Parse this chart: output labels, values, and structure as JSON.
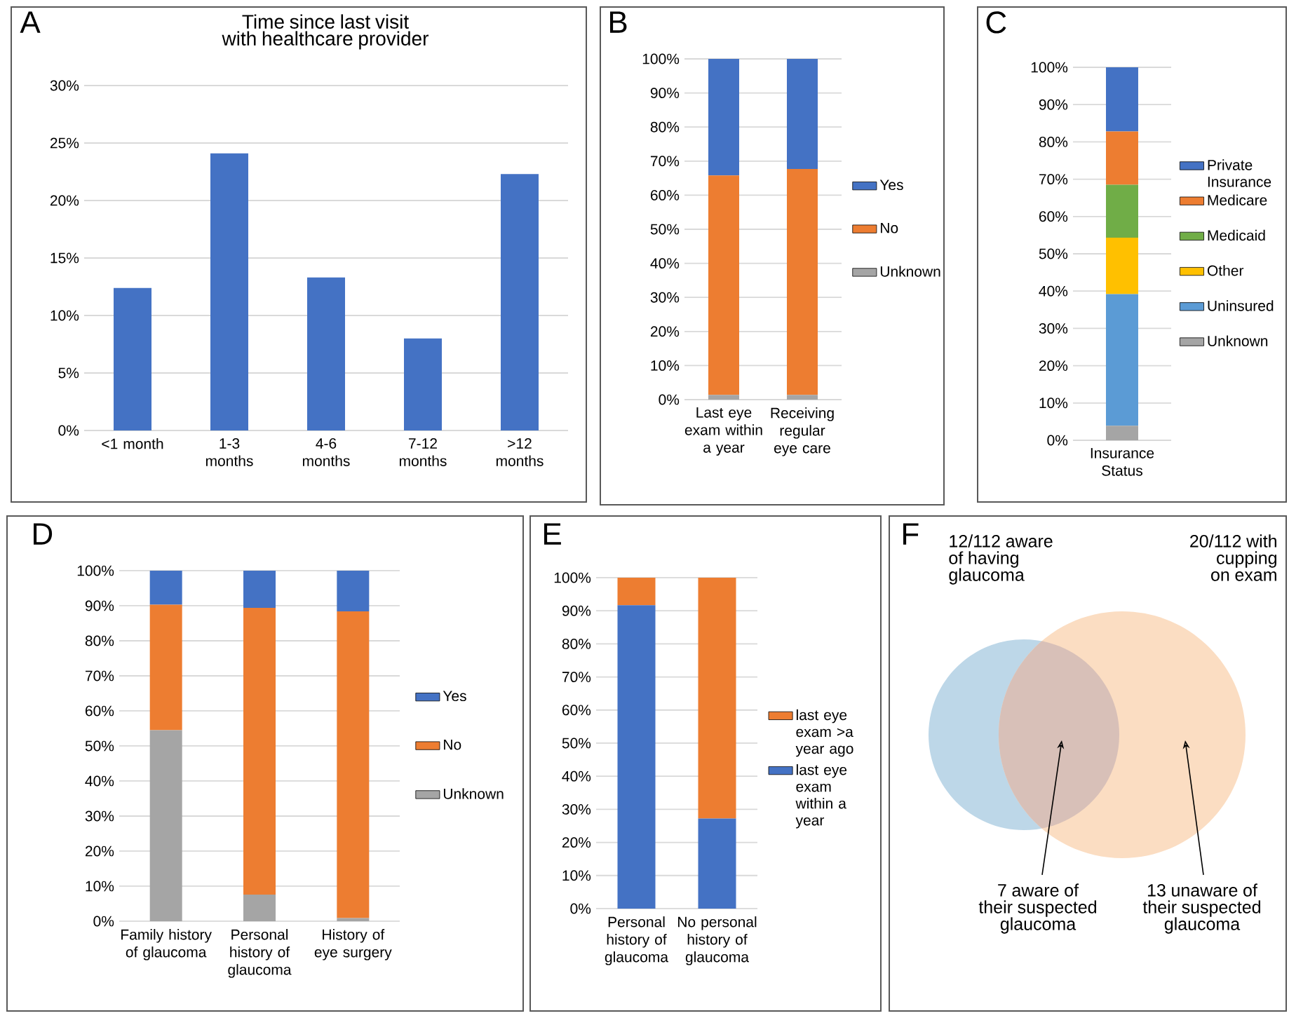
{
  "chart_data": [
    {
      "type": "bar",
      "title": "Time since last visit with healthcare provider",
      "annotations": [
        "A"
      ],
      "categories": [
        "<1 month",
        "1-3 months",
        "4-6 months",
        "7-12 months",
        ">12 months"
      ],
      "values": [
        12.4,
        24.1,
        13.3,
        8.0,
        22.3
      ],
      "color": "#4472c4",
      "ylim": [
        0,
        30
      ],
      "yticks": [
        {
          "value": 0,
          "label": "0%"
        },
        {
          "value": 5,
          "label": "5%"
        },
        {
          "value": 10,
          "label": "10%"
        },
        {
          "value": 15,
          "label": "15%"
        },
        {
          "value": 20,
          "label": "20%"
        },
        {
          "value": 25,
          "label": "25%"
        },
        {
          "value": 30,
          "label": "30%"
        }
      ],
      "grid": "y"
    },
    {
      "type": "bar",
      "stacked": true,
      "annotations": [
        "B"
      ],
      "categories": [
        "Last eye exam within a year",
        "Receiving regular eye care"
      ],
      "series": [
        {
          "name": "Unknown",
          "color": "#a5a5a5",
          "values": [
            1.4,
            1.4
          ]
        },
        {
          "name": "No",
          "color": "#ed7d31",
          "values": [
            64.4,
            66.3
          ]
        },
        {
          "name": "Yes",
          "color": "#4472c4",
          "values": [
            34.2,
            32.3
          ]
        }
      ],
      "ylim": [
        0,
        100
      ],
      "yticks": [
        {
          "value": 0,
          "label": "0%"
        },
        {
          "value": 10,
          "label": "10%"
        },
        {
          "value": 20,
          "label": "20%"
        },
        {
          "value": 30,
          "label": "30%"
        },
        {
          "value": 40,
          "label": "40%"
        },
        {
          "value": 50,
          "label": "50%"
        },
        {
          "value": 60,
          "label": "60%"
        },
        {
          "value": 70,
          "label": "70%"
        },
        {
          "value": 80,
          "label": "80%"
        },
        {
          "value": 90,
          "label": "90%"
        },
        {
          "value": 100,
          "label": "100%"
        }
      ],
      "grid": "y",
      "legend": "right"
    },
    {
      "type": "bar",
      "stacked": true,
      "annotations": [
        "C"
      ],
      "categories": [
        "Insurance Status"
      ],
      "series": [
        {
          "name": "Unknown",
          "color": "#a5a5a5",
          "values": [
            3.9
          ]
        },
        {
          "name": "Uninsured",
          "color": "#5b9bd5",
          "values": [
            35.3
          ]
        },
        {
          "name": "Other",
          "color": "#ffc000",
          "values": [
            15.1
          ]
        },
        {
          "name": "Medicaid",
          "color": "#70ad47",
          "values": [
            14.2
          ]
        },
        {
          "name": "Medicare",
          "color": "#ed7d31",
          "values": [
            14.3
          ]
        },
        {
          "name": "Private Insurance",
          "color": "#4472c4",
          "values": [
            17.2
          ]
        }
      ],
      "ylim": [
        0,
        100
      ],
      "yticks": [
        {
          "value": 0,
          "label": "0%"
        },
        {
          "value": 10,
          "label": "10%"
        },
        {
          "value": 20,
          "label": "20%"
        },
        {
          "value": 30,
          "label": "30%"
        },
        {
          "value": 40,
          "label": "40%"
        },
        {
          "value": 50,
          "label": "50%"
        },
        {
          "value": 60,
          "label": "60%"
        },
        {
          "value": 70,
          "label": "70%"
        },
        {
          "value": 80,
          "label": "80%"
        },
        {
          "value": 90,
          "label": "90%"
        },
        {
          "value": 100,
          "label": "100%"
        }
      ],
      "grid": "y",
      "legend": "right"
    },
    {
      "type": "bar",
      "stacked": true,
      "annotations": [
        "D"
      ],
      "categories": [
        "Family history of glaucoma",
        "Personal history of glaucoma",
        "History of eye surgery"
      ],
      "series": [
        {
          "name": "Unknown",
          "color": "#a5a5a5",
          "values": [
            54.5,
            7.6,
            0.9
          ]
        },
        {
          "name": "No",
          "color": "#ed7d31",
          "values": [
            35.8,
            81.8,
            87.5
          ]
        },
        {
          "name": "Yes",
          "color": "#4472c4",
          "values": [
            9.7,
            10.6,
            11.6
          ]
        }
      ],
      "ylim": [
        0,
        100
      ],
      "yticks": [
        {
          "value": 0,
          "label": "0%"
        },
        {
          "value": 10,
          "label": "10%"
        },
        {
          "value": 20,
          "label": "20%"
        },
        {
          "value": 30,
          "label": "30%"
        },
        {
          "value": 40,
          "label": "40%"
        },
        {
          "value": 50,
          "label": "50%"
        },
        {
          "value": 60,
          "label": "60%"
        },
        {
          "value": 70,
          "label": "70%"
        },
        {
          "value": 80,
          "label": "80%"
        },
        {
          "value": 90,
          "label": "90%"
        },
        {
          "value": 100,
          "label": "100%"
        }
      ],
      "grid": "y",
      "legend": "right"
    },
    {
      "type": "bar",
      "stacked": true,
      "annotations": [
        "E"
      ],
      "categories": [
        "Personal history of glaucoma",
        "No personal history of glaucoma"
      ],
      "series": [
        {
          "name": "last eye exam within a year",
          "color": "#4472c4",
          "values": [
            91.7,
            27.2
          ]
        },
        {
          "name": "last eye exam >a year ago",
          "color": "#ed7d31",
          "values": [
            8.3,
            72.8
          ]
        }
      ],
      "ylim": [
        0,
        100
      ],
      "yticks": [
        {
          "value": 0,
          "label": "0%"
        },
        {
          "value": 10,
          "label": "10%"
        },
        {
          "value": 20,
          "label": "20%"
        },
        {
          "value": 30,
          "label": "30%"
        },
        {
          "value": 40,
          "label": "40%"
        },
        {
          "value": 50,
          "label": "50%"
        },
        {
          "value": 60,
          "label": "60%"
        },
        {
          "value": 70,
          "label": "70%"
        },
        {
          "value": 80,
          "label": "80%"
        },
        {
          "value": 90,
          "label": "90%"
        },
        {
          "value": 100,
          "label": "100%"
        }
      ],
      "grid": "y",
      "legend": "right"
    },
    {
      "type": "other",
      "annotations": [
        "F",
        "12/112 aware of having glaucoma",
        "20/112 with cupping on exam",
        "7 aware of their suspected glaucoma",
        "13 unaware of their suspected glaucoma"
      ]
    }
  ]
}
